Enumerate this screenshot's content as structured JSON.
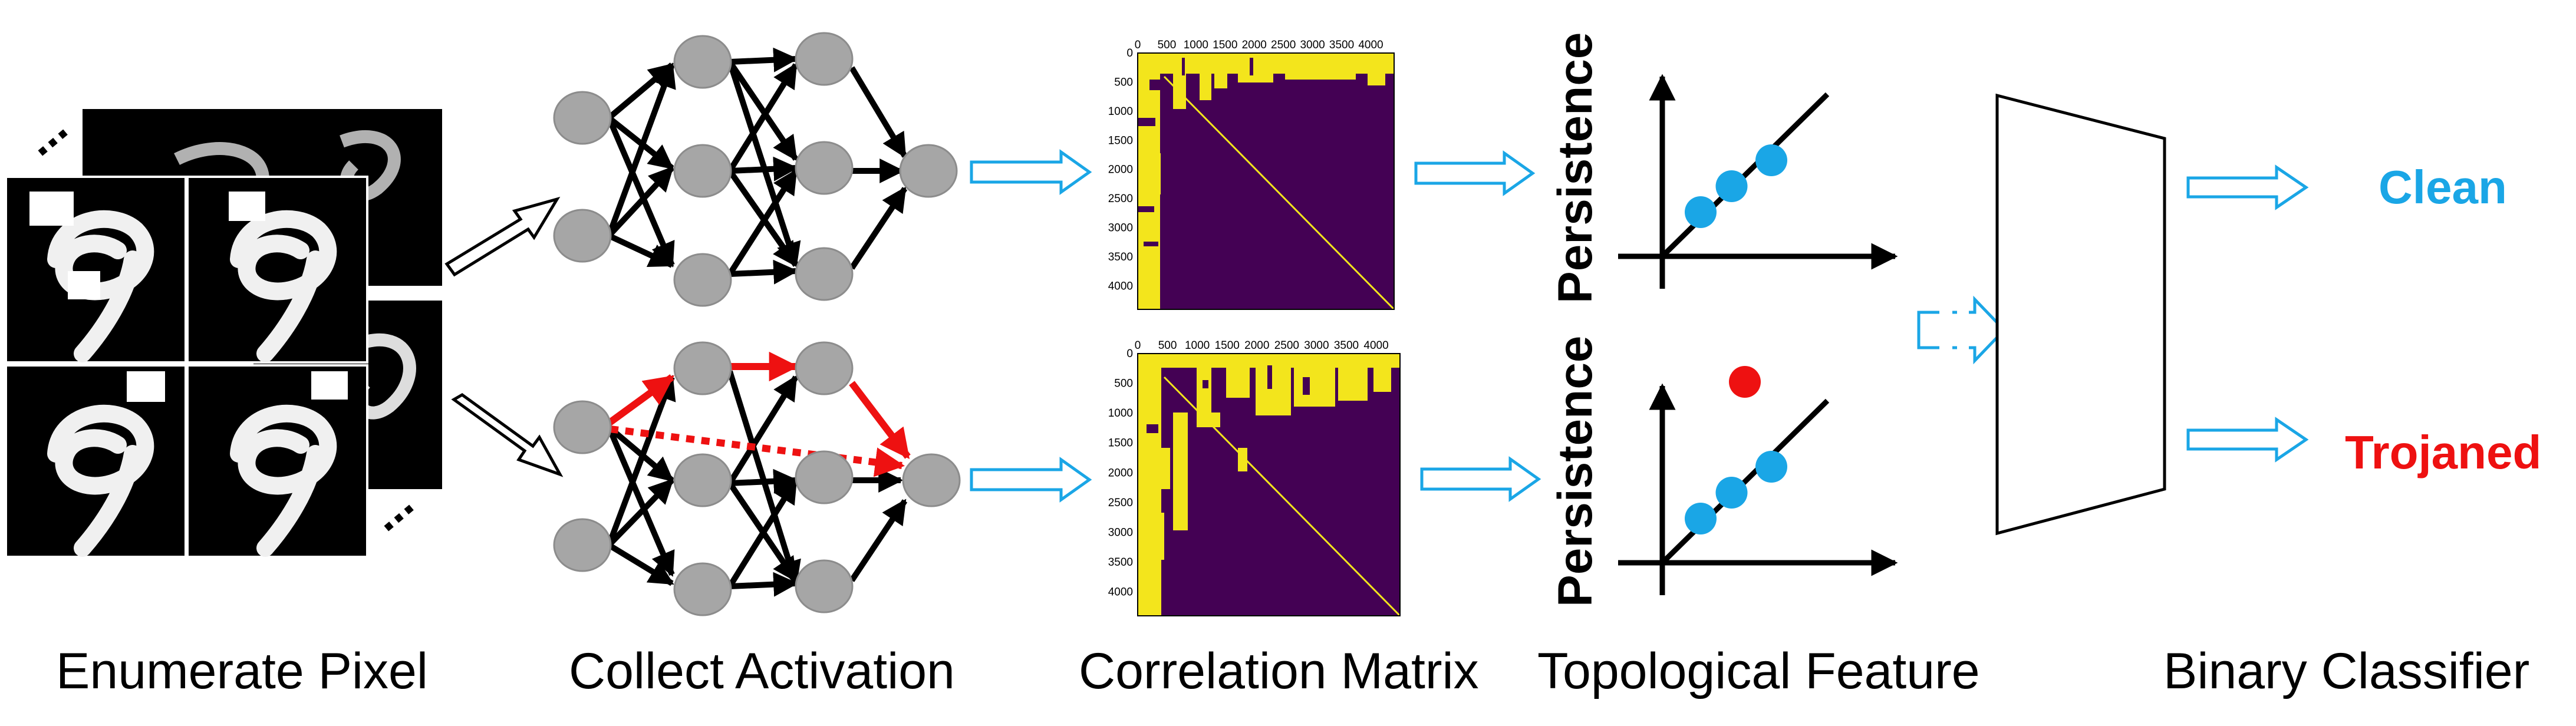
{
  "stages": [
    "Enumerate Pixel",
    "Collect Activation",
    "Correlation Matrix",
    "Topological Feature",
    "Binary Classifier"
  ],
  "ellipsis": "...",
  "persistence_axis_label": "Persistence",
  "matrix_tick_labels": [
    "0",
    "500",
    "1000",
    "1500",
    "2000",
    "2500",
    "3000",
    "3500",
    "4000"
  ],
  "matrix_y_tick_labels": [
    "0",
    "500",
    "1000",
    "1500",
    "2000",
    "2500",
    "3000",
    "3500",
    "4000"
  ],
  "outputs": {
    "clean": "Clean",
    "trojaned": "Trojaned"
  },
  "colors": {
    "accent_blue": "#1aa6e6",
    "trojan_red": "#ee1111",
    "node_gray": "#a6a6a6",
    "matrix_purple": "#440154",
    "matrix_yellow": "#f3e51c"
  },
  "persistence_points": {
    "clean": [
      {
        "birth": 1.0,
        "death": 1.6
      },
      {
        "birth": 1.7,
        "death": 2.4
      },
      {
        "birth": 2.6,
        "death": 3.2
      }
    ],
    "trojaned": [
      {
        "birth": 1.0,
        "death": 1.6
      },
      {
        "birth": 1.7,
        "death": 2.4
      },
      {
        "birth": 2.6,
        "death": 3.2
      }
    ],
    "trojaned_outlier": {
      "birth": 2.0,
      "death": 5.0
    }
  }
}
